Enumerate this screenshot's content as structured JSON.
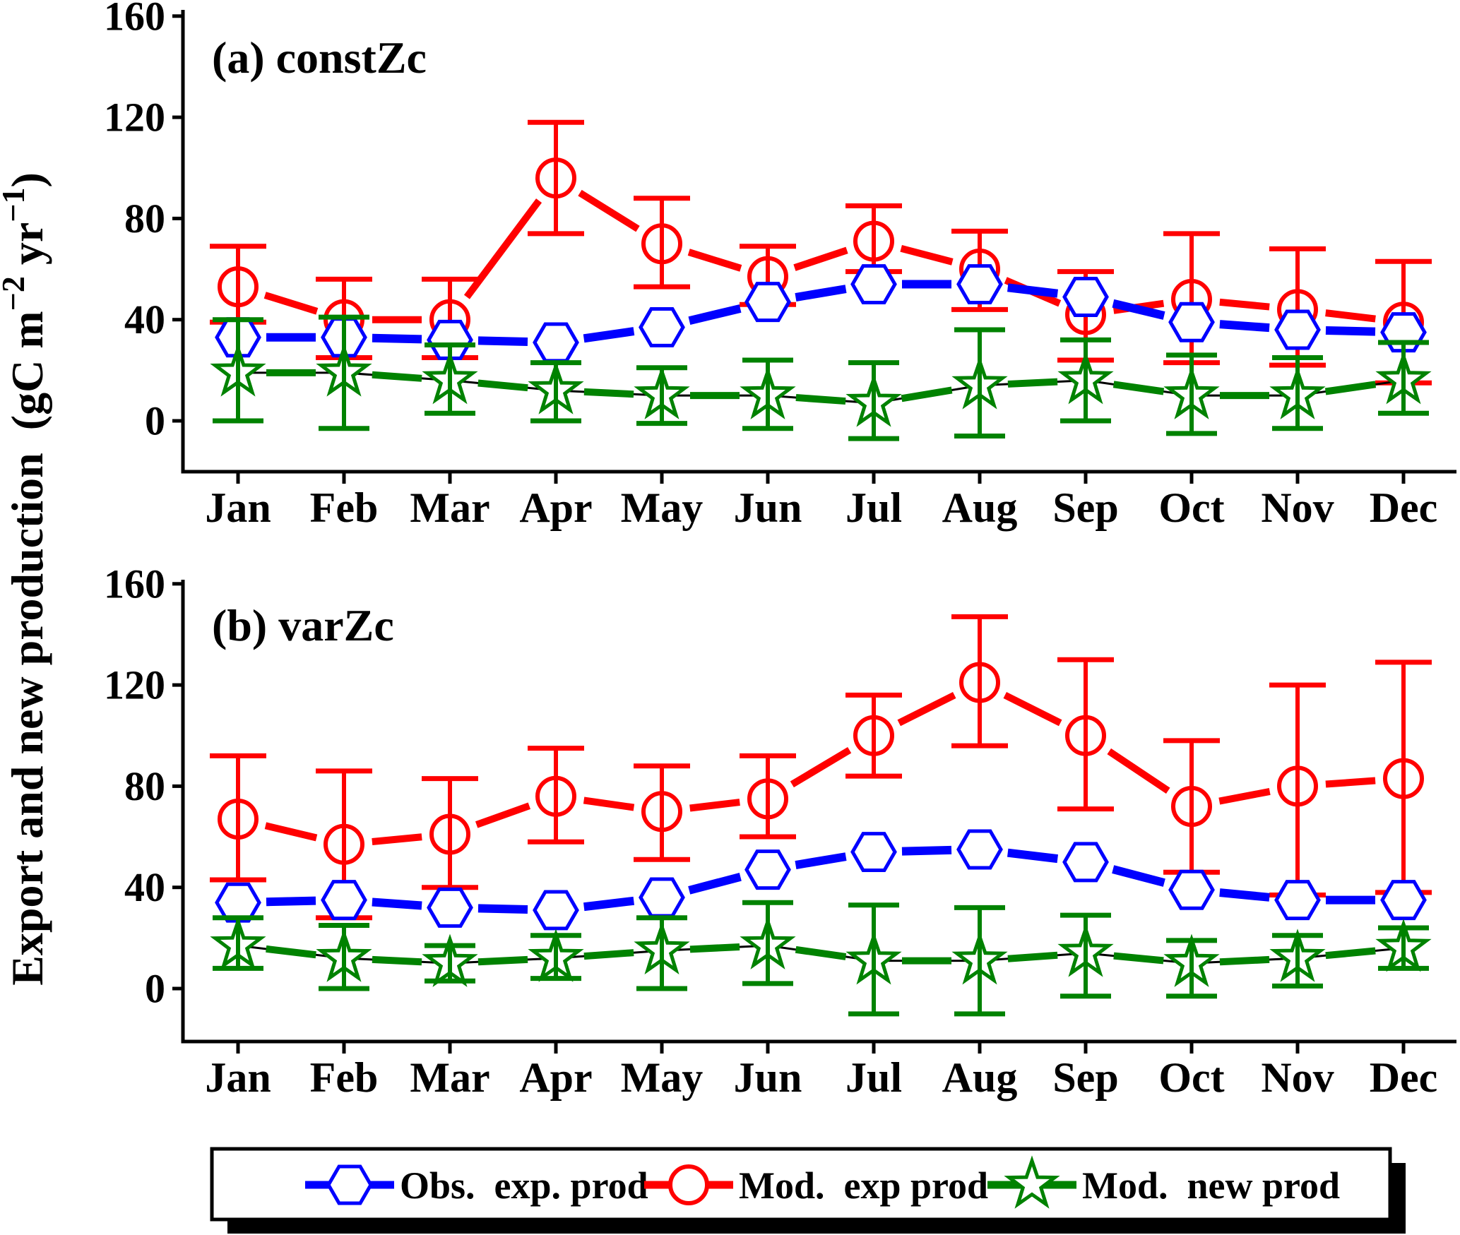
{
  "figure": {
    "y_axis_label": "Export and new production  (gC m⁻² yr⁻¹)",
    "y_axis_label_parts": [
      {
        "t": "Export and new production  (gC m"
      },
      {
        "t": "−2",
        "sup": true
      },
      {
        "t": " yr",
        "sup": false
      },
      {
        "t": "−1",
        "sup": true
      },
      {
        "t": ")",
        "sup": false
      }
    ],
    "colors": {
      "obs_exp_prod": "#0000FF",
      "mod_exp_prod": "#FF0000",
      "mod_new_prod": "#008200"
    },
    "legend": {
      "entries": [
        {
          "label": "Obs.  exp. prod",
          "series_key": "obs_exp_prod",
          "marker": "hexagon",
          "color": "#0000FF"
        },
        {
          "label": "Mod.  exp prod",
          "series_key": "mod_exp_prod",
          "marker": "circle",
          "color": "#FF0000"
        },
        {
          "label": "Mod.  new prod",
          "series_key": "mod_new_prod",
          "marker": "star",
          "color": "#008200"
        }
      ]
    }
  },
  "chart_data": [
    {
      "type": "line",
      "panel_label": "(a) constZc",
      "x": [
        "Jan",
        "Feb",
        "Mar",
        "Apr",
        "May",
        "Jun",
        "Jul",
        "Aug",
        "Sep",
        "Oct",
        "Nov",
        "Dec"
      ],
      "xlabel": "",
      "ylabel": "Export and new production (gC m-2 yr-1)",
      "ylim": [
        -21,
        166
      ],
      "yticks": [
        0,
        40,
        80,
        120,
        160
      ],
      "grid": false,
      "legend_position": "bottom-shared",
      "series": [
        {
          "name": "Obs.  exp. prod",
          "key": "obs_exp_prod",
          "color": "#0000FF",
          "marker": "hexagon",
          "values": [
            33,
            33,
            32,
            31,
            37,
            47,
            54,
            54,
            49,
            39,
            36,
            35
          ]
        },
        {
          "name": "Mod.  exp prod",
          "key": "mod_exp_prod",
          "color": "#FF0000",
          "marker": "circle",
          "values": [
            53,
            40,
            40,
            96,
            70,
            57,
            71,
            60,
            42,
            48,
            44,
            39
          ],
          "err_lo": [
            39,
            25,
            25,
            74,
            53,
            46,
            59,
            44,
            24,
            23,
            22,
            15
          ],
          "err_hi": [
            69,
            56,
            56,
            118,
            88,
            69,
            85,
            75,
            59,
            74,
            68,
            63
          ]
        },
        {
          "name": "Mod.  new prod",
          "key": "mod_new_prod",
          "color": "#008200",
          "marker": "star",
          "values": [
            19,
            19,
            16,
            12,
            10,
            10,
            7,
            14,
            16,
            10,
            10,
            16
          ],
          "err_lo": [
            0,
            -3,
            3,
            0,
            -1,
            -3,
            -7,
            -6,
            0,
            -5,
            -3,
            3
          ],
          "err_hi": [
            40,
            41,
            30,
            23,
            21,
            24,
            23,
            36,
            32,
            26,
            25,
            31
          ]
        }
      ]
    },
    {
      "type": "line",
      "panel_label": "(b) varZc",
      "x": [
        "Jan",
        "Feb",
        "Mar",
        "Apr",
        "May",
        "Jun",
        "Jul",
        "Aug",
        "Sep",
        "Oct",
        "Nov",
        "Dec"
      ],
      "xlabel": "",
      "ylabel": "Export and new production (gC m-2 yr-1)",
      "ylim": [
        -21,
        166
      ],
      "yticks": [
        0,
        40,
        80,
        120,
        160
      ],
      "grid": false,
      "legend_position": "bottom-shared",
      "series": [
        {
          "name": "Obs.  exp. prod",
          "key": "obs_exp_prod",
          "color": "#0000FF",
          "marker": "hexagon",
          "values": [
            34,
            35,
            32,
            31,
            36,
            47,
            54,
            55,
            50,
            39,
            35,
            35
          ]
        },
        {
          "name": "Mod.  exp prod",
          "key": "mod_exp_prod",
          "color": "#FF0000",
          "marker": "circle",
          "values": [
            67,
            57,
            61,
            76,
            70,
            75,
            100,
            121,
            100,
            72,
            80,
            83
          ],
          "err_lo": [
            43,
            28,
            40,
            58,
            51,
            60,
            84,
            96,
            71,
            46,
            37,
            38
          ],
          "err_hi": [
            92,
            86,
            83,
            95,
            88,
            92,
            116,
            147,
            130,
            98,
            120,
            129
          ]
        },
        {
          "name": "Mod.  new prod",
          "key": "mod_new_prod",
          "color": "#008200",
          "marker": "star",
          "values": [
            17,
            12,
            10,
            12,
            15,
            17,
            11,
            11,
            14,
            10,
            12,
            16
          ],
          "err_lo": [
            8,
            0,
            3,
            4,
            0,
            2,
            -10,
            -10,
            -3,
            -3,
            1,
            8
          ],
          "err_hi": [
            28,
            25,
            17,
            21,
            28,
            34,
            33,
            32,
            29,
            19,
            21,
            24
          ]
        }
      ]
    }
  ]
}
